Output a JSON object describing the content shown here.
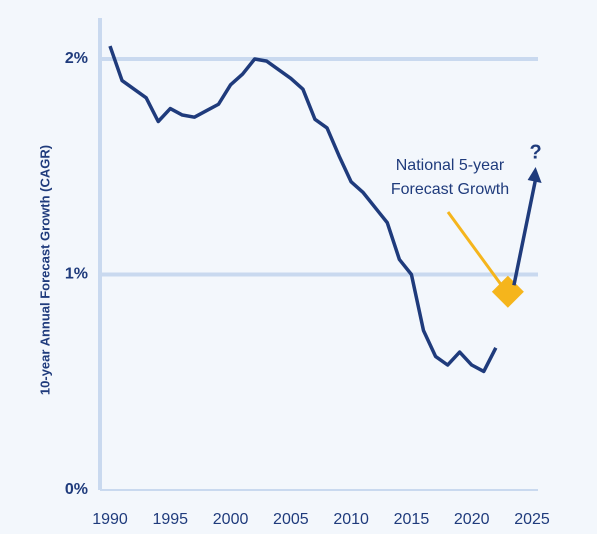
{
  "chart_data": {
    "type": "line",
    "y_label": "10-year Annual Forecast Growth (CAGR)",
    "x": [
      1990,
      1991,
      1992,
      1993,
      1994,
      1995,
      1996,
      1997,
      1998,
      1999,
      2000,
      2001,
      2002,
      2003,
      2004,
      2005,
      2006,
      2007,
      2008,
      2009,
      2010,
      2011,
      2012,
      2013,
      2014,
      2015,
      2016,
      2017,
      2018,
      2019,
      2020,
      2021,
      2022
    ],
    "series": [
      {
        "color": "#1f3b7c",
        "values": [
          2.06,
          1.9,
          1.86,
          1.82,
          1.71,
          1.77,
          1.74,
          1.73,
          1.76,
          1.79,
          1.88,
          1.93,
          2.0,
          1.99,
          1.95,
          1.91,
          1.86,
          1.72,
          1.68,
          1.55,
          1.43,
          1.38,
          1.31,
          1.24,
          1.07,
          1.0,
          0.74,
          0.62,
          0.58,
          0.64,
          0.58,
          0.55,
          0.66
        ]
      }
    ],
    "xlim": [
      1990,
      2025
    ],
    "xticks": [
      1990,
      1995,
      2000,
      2005,
      2010,
      2015,
      2020,
      2025
    ],
    "ylim": [
      0,
      2
    ],
    "yticks": [
      {
        "value": 0,
        "label": "0%"
      },
      {
        "value": 1,
        "label": "1%"
      },
      {
        "value": 2,
        "label": "2%"
      }
    ],
    "grid": true,
    "annotations": [
      {
        "lines": [
          "National 5-year",
          "Forecast Growth"
        ],
        "x": 2023,
        "y": 0.92,
        "color": "#f5b51c"
      },
      {
        "text": "?",
        "x": 2025.3,
        "y": 1.48,
        "from_x": 2023.5,
        "from_y": 0.95,
        "color": "#1f3b7c"
      }
    ]
  }
}
